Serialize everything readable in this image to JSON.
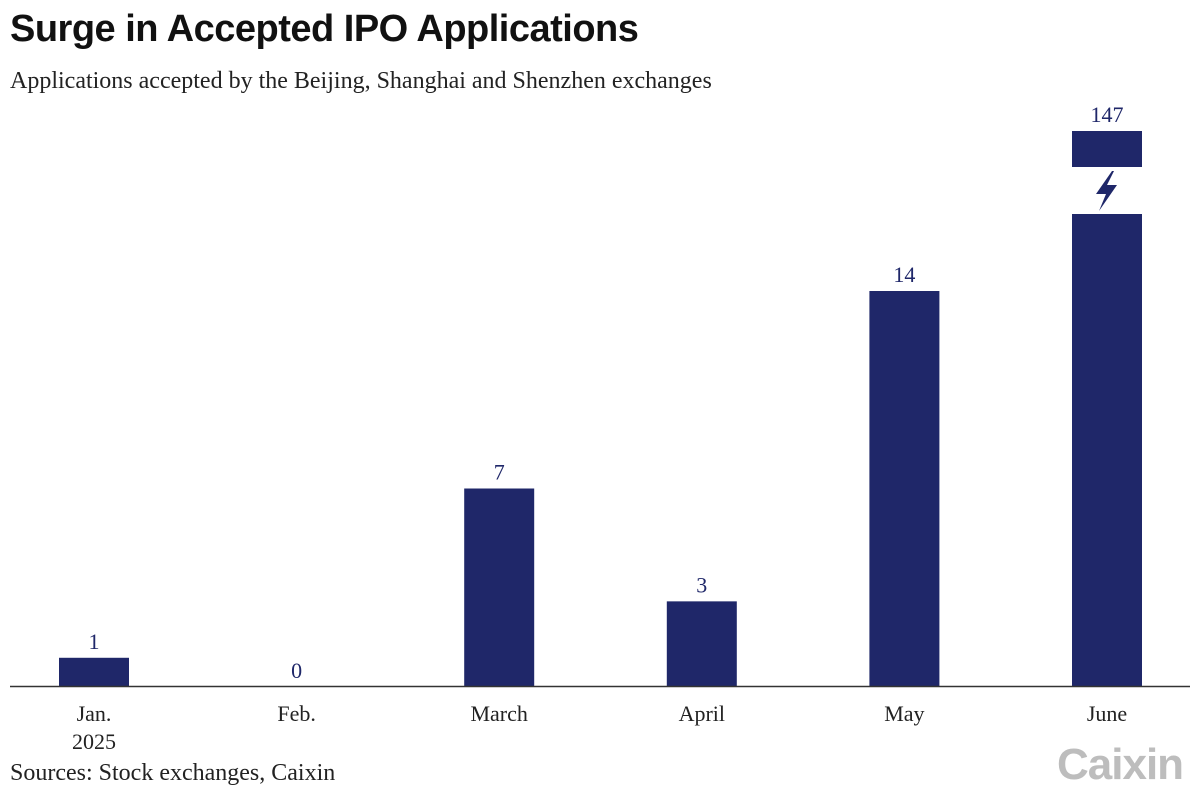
{
  "title": "Surge in Accepted IPO Applications",
  "subtitle": "Applications accepted by the Beijing, Shanghai and Shenzhen exchanges",
  "source": "Sources: Stock exchanges, Caixin",
  "logo": "Caixin",
  "colors": {
    "bar": "#1f2769",
    "axis": "#333333",
    "text": "#222222",
    "logo": "#bdbdbd"
  },
  "chart_data": {
    "type": "bar",
    "title": "Surge in Accepted IPO Applications",
    "subtitle": "Applications accepted by the Beijing, Shanghai and Shenzhen exchanges",
    "categories": [
      "Jan.\n2025",
      "Feb.",
      "March",
      "April",
      "May",
      "June"
    ],
    "values": [
      1,
      0,
      7,
      3,
      14,
      147
    ],
    "data_labels": [
      "1",
      "0",
      "7",
      "3",
      "14",
      "147"
    ],
    "axis_break": {
      "category": "June",
      "icon": "lightning-bolt-icon"
    },
    "xlabel": "",
    "ylabel": "",
    "grid": false,
    "legend": "none"
  }
}
